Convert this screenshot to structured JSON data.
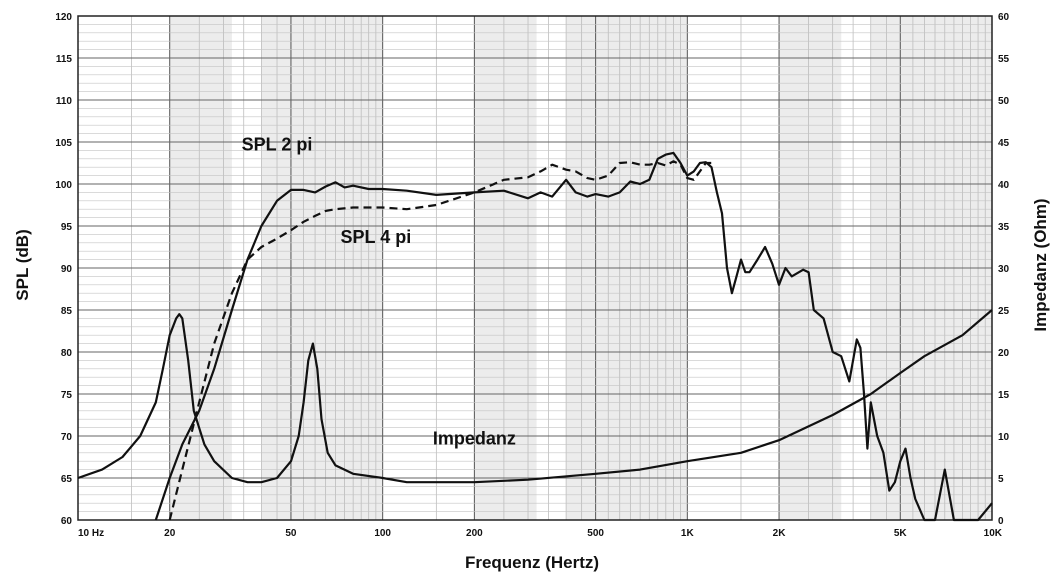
{
  "chart_data": {
    "type": "line",
    "title": "",
    "xlabel": "Frequenz (Hertz)",
    "ylabel": "SPL (dB)",
    "y2label": "Impedanz (Ohm)",
    "x_scale": "log",
    "xlim": [
      10,
      10000
    ],
    "ylim": [
      60,
      120
    ],
    "y2lim": [
      0,
      60
    ],
    "grid": true,
    "x_tick_labels": [
      {
        "value": 10,
        "label": "10  Hz"
      },
      {
        "value": 20,
        "label": "20"
      },
      {
        "value": 50,
        "label": "50"
      },
      {
        "value": 100,
        "label": "100"
      },
      {
        "value": 200,
        "label": "200"
      },
      {
        "value": 500,
        "label": "500"
      },
      {
        "value": 1000,
        "label": "1K"
      },
      {
        "value": 2000,
        "label": "2K"
      },
      {
        "value": 5000,
        "label": "5K"
      },
      {
        "value": 10000,
        "label": "10K"
      }
    ],
    "y_ticks": [
      60,
      65,
      70,
      75,
      80,
      85,
      90,
      95,
      100,
      105,
      110,
      115,
      120
    ],
    "y2_ticks": [
      0,
      5,
      10,
      15,
      20,
      25,
      30,
      35,
      40,
      45,
      50,
      55,
      60
    ],
    "annotations": [
      {
        "text": "SPL 2 pi",
        "x": 45,
        "y": 104
      },
      {
        "text": "SPL 4 pi",
        "x": 95,
        "y": 93
      },
      {
        "text": "Impedanz",
        "x": 200,
        "y": 69
      }
    ],
    "series": [
      {
        "name": "SPL 2 pi",
        "axis": "left",
        "style": "solid",
        "x": [
          18,
          20,
          22,
          25,
          28,
          32,
          36,
          40,
          45,
          50,
          55,
          60,
          65,
          70,
          75,
          80,
          90,
          100,
          120,
          150,
          200,
          250,
          300,
          330,
          360,
          400,
          430,
          470,
          500,
          550,
          600,
          650,
          700,
          750,
          800,
          850,
          900,
          950,
          1000,
          1050,
          1100,
          1150,
          1200,
          1250,
          1300,
          1350,
          1400,
          1450,
          1500,
          1550,
          1600,
          1700,
          1800,
          1900,
          2000,
          2100,
          2200,
          2400,
          2500,
          2600,
          2800,
          3000,
          3200,
          3400,
          3600,
          3700,
          3800,
          3900,
          4000,
          4200,
          4400,
          4600,
          4800,
          5000,
          5200,
          5400,
          5600,
          6000,
          6500,
          7000,
          7500,
          8000,
          9000,
          10000
        ],
        "y": [
          60,
          65,
          69,
          73,
          78,
          85,
          91,
          95,
          98,
          99.3,
          99.3,
          99,
          99.7,
          100.2,
          99.6,
          99.8,
          99.4,
          99.4,
          99.2,
          98.7,
          99,
          99.2,
          98.3,
          99,
          98.5,
          100.5,
          99,
          98.5,
          98.8,
          98.5,
          99,
          100.3,
          100,
          100.5,
          103,
          103.5,
          103.7,
          102.5,
          101,
          101.5,
          102.5,
          102.6,
          102,
          99,
          96.5,
          90,
          87,
          89,
          91,
          89.5,
          89.5,
          91,
          92.5,
          90.5,
          88,
          90,
          89,
          89.8,
          89.5,
          85,
          84,
          80,
          79.5,
          76.5,
          81.5,
          80.5,
          75,
          68.5,
          74,
          70,
          68,
          63.5,
          64.5,
          67,
          68.5,
          65,
          62.5,
          60,
          59,
          66,
          60,
          58,
          60,
          62
        ]
      },
      {
        "name": "SPL 4 pi",
        "axis": "left",
        "style": "dashed",
        "x": [
          20,
          22,
          25,
          28,
          32,
          36,
          40,
          45,
          50,
          55,
          60,
          65,
          70,
          80,
          90,
          100,
          120,
          150,
          200,
          250,
          300,
          330,
          360,
          400,
          430,
          470,
          500,
          550,
          600,
          650,
          700,
          750,
          800,
          850,
          900,
          950,
          1000,
          1050,
          1100,
          1150,
          1200
        ],
        "y": [
          60,
          66,
          74,
          81,
          87,
          91,
          92.5,
          93.5,
          94.5,
          95.5,
          96.2,
          96.8,
          97,
          97.2,
          97.2,
          97.2,
          97,
          97.5,
          99,
          100.5,
          100.8,
          101.5,
          102.3,
          101.7,
          101.5,
          100.7,
          100.5,
          101,
          102.5,
          102.6,
          102.3,
          102.3,
          102.5,
          102.2,
          102.7,
          102.3,
          100.7,
          100.5,
          101.5,
          102.5,
          102.5
        ]
      },
      {
        "name": "Impedanz",
        "axis": "right",
        "style": "solid",
        "x": [
          10,
          12,
          14,
          16,
          18,
          19,
          20,
          21,
          21.5,
          22,
          23,
          24,
          26,
          28,
          32,
          36,
          40,
          45,
          50,
          53,
          55,
          57,
          59,
          61,
          63,
          66,
          70,
          80,
          100,
          120,
          150,
          200,
          300,
          500,
          700,
          1000,
          1500,
          2000,
          3000,
          4000,
          5000,
          6000,
          8000,
          10000
        ],
        "y": [
          5,
          6,
          7.5,
          10,
          14,
          18,
          22,
          24,
          24.5,
          24,
          19,
          13,
          9,
          7,
          5,
          4.5,
          4.5,
          5,
          7,
          10,
          14,
          19,
          21,
          18,
          12,
          8,
          6.5,
          5.5,
          5,
          4.5,
          4.5,
          4.5,
          4.8,
          5.5,
          6,
          7,
          8,
          9.5,
          12.5,
          15,
          17.5,
          19.5,
          22,
          25
        ]
      }
    ]
  }
}
